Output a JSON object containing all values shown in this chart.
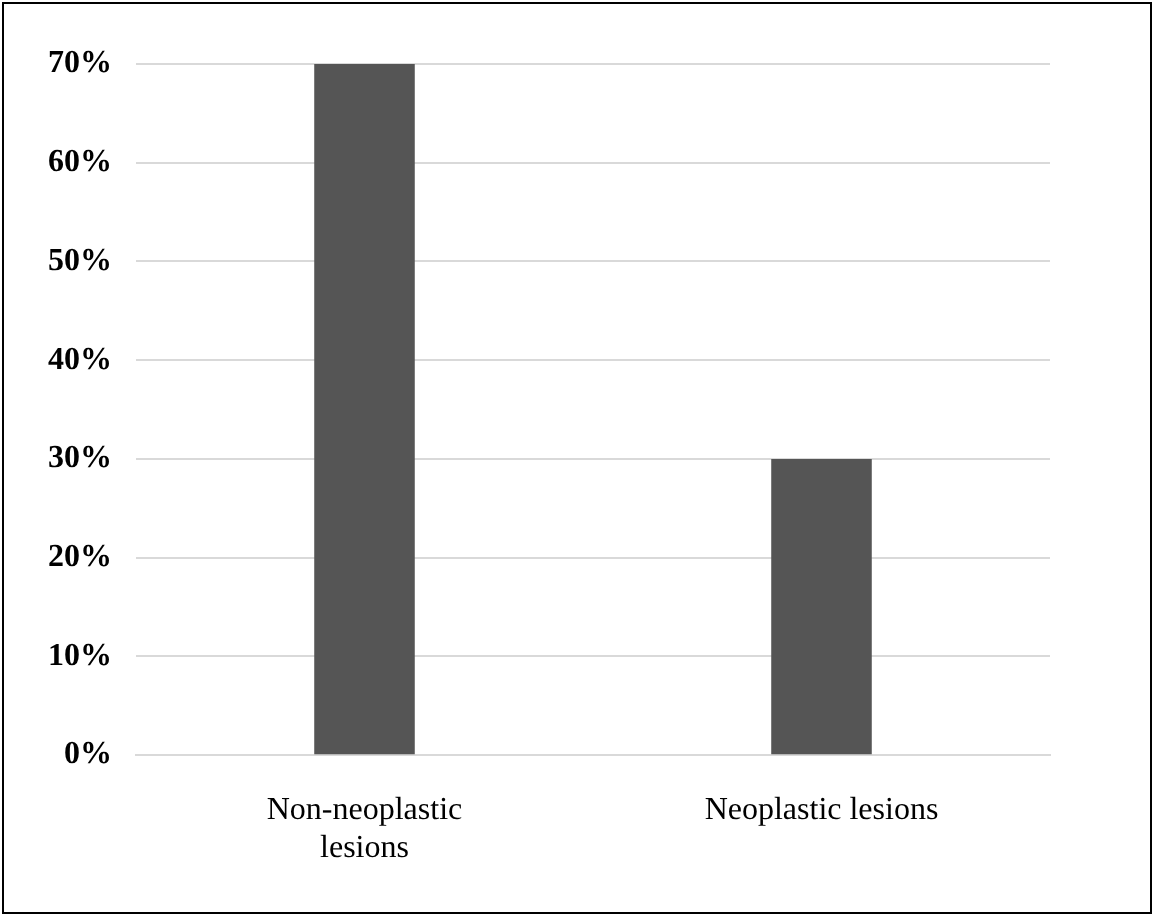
{
  "chart_data": {
    "type": "bar",
    "categories": [
      "Non-neoplastic\nlesions",
      "Neoplastic lesions"
    ],
    "values": [
      70,
      30
    ],
    "color": "#555555",
    "ylim": [
      0,
      70
    ],
    "yticks": [
      {
        "value": 0,
        "label": "0%"
      },
      {
        "value": 10,
        "label": "10%"
      },
      {
        "value": 20,
        "label": "20%"
      },
      {
        "value": 30,
        "label": "30%"
      },
      {
        "value": 40,
        "label": "40%"
      },
      {
        "value": 50,
        "label": "50%"
      },
      {
        "value": 60,
        "label": "60%"
      },
      {
        "value": 70,
        "label": "70%"
      }
    ],
    "grid": "y",
    "legend": false
  }
}
